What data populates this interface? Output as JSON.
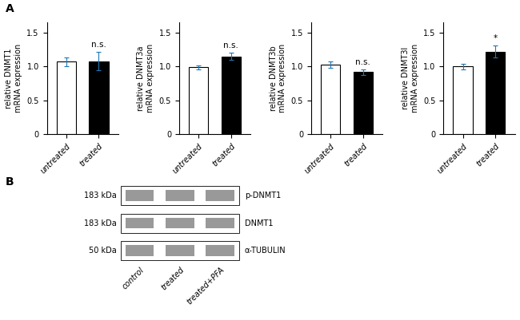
{
  "chart_data": [
    {
      "type": "bar",
      "ylabel": "relative DNMT1\nmRNA expression",
      "categories": [
        "untreated",
        "treated"
      ],
      "values": [
        1.07,
        1.08
      ],
      "errors": [
        0.06,
        0.13
      ],
      "colors": [
        "white",
        "black"
      ],
      "ylim": [
        0,
        1.65
      ],
      "yticks": [
        0,
        0.5,
        {
          "value": 1,
          "label": "1.0"
        },
        1.5
      ],
      "annotations": [
        {
          "text": "A"
        },
        {
          "text": "n.s.",
          "x": "treated"
        }
      ]
    },
    {
      "type": "bar",
      "ylabel": "relative DNMT3a\nmRNA expression",
      "categories": [
        "untreated",
        "treated"
      ],
      "values": [
        0.99,
        1.15
      ],
      "errors": [
        0.03,
        0.05
      ],
      "colors": [
        "white",
        "black"
      ],
      "ylim": [
        0,
        1.65
      ],
      "yticks": [
        0,
        0.5,
        {
          "value": 1,
          "label": "1.0"
        },
        1.5
      ],
      "annotations": [
        {
          "text": "n.s.",
          "x": "treated"
        }
      ]
    },
    {
      "type": "bar",
      "ylabel": "relative DNMT3b\nmRNA expression",
      "categories": [
        "untreated",
        "treated"
      ],
      "values": [
        1.03,
        0.92
      ],
      "errors": [
        0.05,
        0.04
      ],
      "colors": [
        "white",
        "black"
      ],
      "ylim": [
        0,
        1.65
      ],
      "yticks": [
        0,
        0.5,
        {
          "value": 1,
          "label": "1.0"
        },
        1.5
      ],
      "annotations": [
        {
          "text": "n.s.",
          "x": "treated"
        }
      ]
    },
    {
      "type": "bar",
      "ylabel": "relative DNMT3l\nmRNA expression",
      "categories": [
        "untreated",
        "treated"
      ],
      "values": [
        1.0,
        1.22
      ],
      "errors": [
        0.04,
        0.09
      ],
      "colors": [
        "white",
        "black"
      ],
      "ylim": [
        0,
        1.65
      ],
      "yticks": [
        0,
        0.5,
        {
          "value": 1,
          "label": "1.0"
        },
        1.5
      ],
      "annotations": [
        {
          "text": "*",
          "x": "treated"
        }
      ]
    },
    {
      "type": "blot",
      "bands": [
        {
          "label": "183 kDa",
          "name": "p-DNMT1"
        },
        {
          "label": "183 kDa",
          "name": "DNMT1"
        },
        {
          "label": "50 kDa",
          "name": "α-TUBULIN"
        }
      ],
      "lanes": [
        "control",
        "treated",
        "treated+PFA"
      ],
      "color": "#999999",
      "annotations": [
        {
          "text": "B"
        }
      ]
    }
  ]
}
